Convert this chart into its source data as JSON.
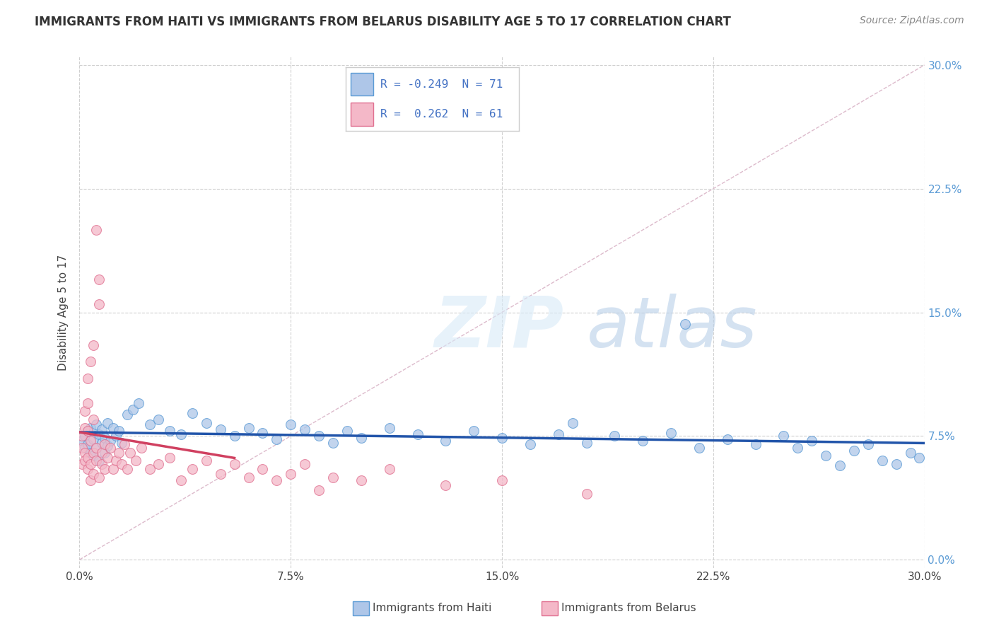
{
  "title": "IMMIGRANTS FROM HAITI VS IMMIGRANTS FROM BELARUS DISABILITY AGE 5 TO 17 CORRELATION CHART",
  "source": "Source: ZipAtlas.com",
  "ylabel": "Disability Age 5 to 17",
  "xlim": [
    0.0,
    0.3
  ],
  "ylim": [
    -0.005,
    0.305
  ],
  "xtick_vals": [
    0.0,
    0.075,
    0.15,
    0.225,
    0.3
  ],
  "xtick_labels": [
    "0.0%",
    "7.5%",
    "15.0%",
    "22.5%",
    "30.0%"
  ],
  "ytick_vals": [
    0.0,
    0.075,
    0.15,
    0.225,
    0.3
  ],
  "ytick_labels": [
    "0.0%",
    "7.5%",
    "15.0%",
    "22.5%",
    "30.0%"
  ],
  "haiti_color": "#aec6e8",
  "haiti_edge": "#5b9bd5",
  "belarus_color": "#f4b8c8",
  "belarus_edge": "#e07090",
  "haiti_trend_color": "#2255aa",
  "belarus_trend_color": "#d04060",
  "diag_color": "#cccccc",
  "grid_color": "#d0d0d0",
  "right_ytick_color": "#5b9bd5",
  "watermark_color": "#c8dff0",
  "haiti_scatter_x": [
    0.001,
    0.002,
    0.002,
    0.003,
    0.003,
    0.004,
    0.004,
    0.005,
    0.005,
    0.006,
    0.006,
    0.007,
    0.007,
    0.008,
    0.008,
    0.009,
    0.009,
    0.01,
    0.01,
    0.011,
    0.012,
    0.013,
    0.014,
    0.015,
    0.017,
    0.019,
    0.021,
    0.025,
    0.028,
    0.032,
    0.036,
    0.04,
    0.045,
    0.05,
    0.055,
    0.06,
    0.065,
    0.07,
    0.075,
    0.08,
    0.085,
    0.09,
    0.095,
    0.1,
    0.11,
    0.12,
    0.13,
    0.14,
    0.15,
    0.16,
    0.17,
    0.175,
    0.18,
    0.19,
    0.2,
    0.21,
    0.215,
    0.22,
    0.23,
    0.24,
    0.25,
    0.255,
    0.26,
    0.265,
    0.27,
    0.275,
    0.28,
    0.285,
    0.29,
    0.295,
    0.298
  ],
  "haiti_scatter_y": [
    0.072,
    0.068,
    0.075,
    0.07,
    0.078,
    0.065,
    0.08,
    0.063,
    0.073,
    0.068,
    0.082,
    0.06,
    0.076,
    0.071,
    0.079,
    0.065,
    0.074,
    0.069,
    0.083,
    0.072,
    0.08,
    0.075,
    0.078,
    0.071,
    0.088,
    0.091,
    0.095,
    0.082,
    0.085,
    0.078,
    0.076,
    0.089,
    0.083,
    0.079,
    0.075,
    0.08,
    0.077,
    0.073,
    0.082,
    0.079,
    0.075,
    0.071,
    0.078,
    0.074,
    0.08,
    0.076,
    0.072,
    0.078,
    0.074,
    0.07,
    0.076,
    0.083,
    0.071,
    0.075,
    0.072,
    0.077,
    0.143,
    0.068,
    0.073,
    0.07,
    0.075,
    0.068,
    0.072,
    0.063,
    0.057,
    0.066,
    0.07,
    0.06,
    0.058,
    0.065,
    0.062
  ],
  "belarus_scatter_x": [
    0.001,
    0.001,
    0.001,
    0.002,
    0.002,
    0.002,
    0.002,
    0.003,
    0.003,
    0.003,
    0.003,
    0.003,
    0.004,
    0.004,
    0.004,
    0.004,
    0.005,
    0.005,
    0.005,
    0.005,
    0.006,
    0.006,
    0.006,
    0.007,
    0.007,
    0.007,
    0.008,
    0.008,
    0.009,
    0.009,
    0.01,
    0.011,
    0.012,
    0.013,
    0.014,
    0.015,
    0.016,
    0.017,
    0.018,
    0.02,
    0.022,
    0.025,
    0.028,
    0.032,
    0.036,
    0.04,
    0.045,
    0.05,
    0.055,
    0.06,
    0.065,
    0.07,
    0.075,
    0.08,
    0.085,
    0.09,
    0.1,
    0.11,
    0.13,
    0.15,
    0.18
  ],
  "belarus_scatter_y": [
    0.068,
    0.075,
    0.058,
    0.08,
    0.065,
    0.09,
    0.06,
    0.078,
    0.055,
    0.095,
    0.062,
    0.11,
    0.048,
    0.12,
    0.058,
    0.072,
    0.065,
    0.085,
    0.052,
    0.13,
    0.06,
    0.2,
    0.068,
    0.155,
    0.05,
    0.17,
    0.058,
    0.065,
    0.055,
    0.07,
    0.062,
    0.068,
    0.055,
    0.06,
    0.065,
    0.058,
    0.07,
    0.055,
    0.065,
    0.06,
    0.068,
    0.055,
    0.058,
    0.062,
    0.048,
    0.055,
    0.06,
    0.052,
    0.058,
    0.05,
    0.055,
    0.048,
    0.052,
    0.058,
    0.042,
    0.05,
    0.048,
    0.055,
    0.045,
    0.048,
    0.04
  ],
  "legend_haiti_color": "#aec6e8",
  "legend_haiti_edge": "#5b9bd5",
  "legend_belarus_color": "#f4b8c8",
  "legend_belarus_edge": "#e07090",
  "legend_text_color": "#4472c4"
}
